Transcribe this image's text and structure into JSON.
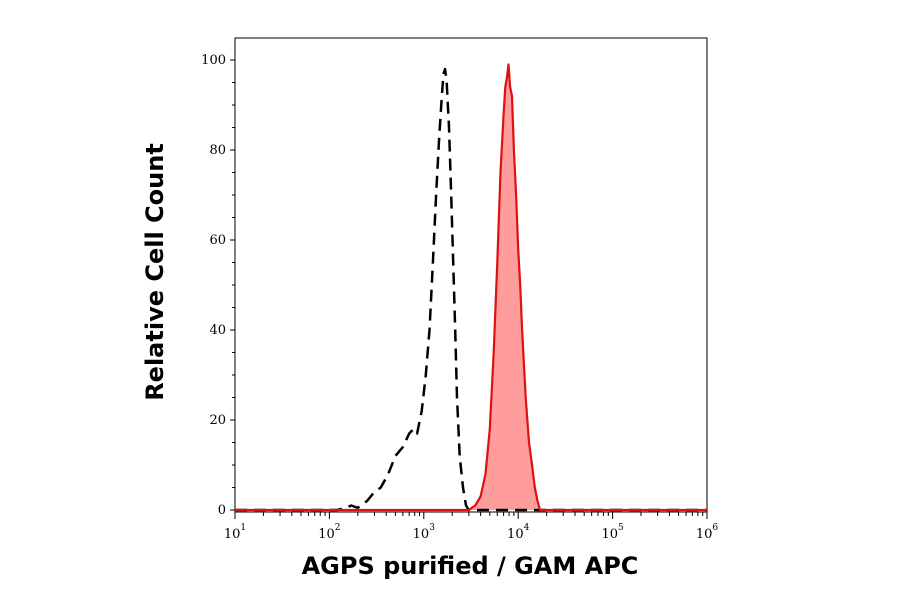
{
  "chart_data": {
    "type": "histogram",
    "xlabel": "AGPS purified / GAM APC",
    "ylabel": "Relative Cell Count",
    "x_scale": "log",
    "xlim": [
      10,
      1000000
    ],
    "ylim": [
      0,
      100
    ],
    "x_ticks": [
      {
        "base": "10",
        "exp": "1"
      },
      {
        "base": "10",
        "exp": "2"
      },
      {
        "base": "10",
        "exp": "3"
      },
      {
        "base": "10",
        "exp": "4"
      },
      {
        "base": "10",
        "exp": "5"
      },
      {
        "base": "10",
        "exp": "6"
      }
    ],
    "y_ticks": [
      "0",
      "20",
      "40",
      "60",
      "80",
      "100"
    ],
    "grid": false,
    "legend": "none",
    "series": [
      {
        "style": "dashed",
        "color": "#000000",
        "fill": "none",
        "points": [
          [
            10,
            0
          ],
          [
            120,
            0
          ],
          [
            150,
            0.5
          ],
          [
            170,
            1
          ],
          [
            200,
            0.5
          ],
          [
            250,
            2
          ],
          [
            300,
            4
          ],
          [
            350,
            5
          ],
          [
            420,
            8
          ],
          [
            500,
            12
          ],
          [
            600,
            14
          ],
          [
            700,
            17
          ],
          [
            780,
            18
          ],
          [
            850,
            17
          ],
          [
            950,
            22
          ],
          [
            1050,
            30
          ],
          [
            1150,
            40
          ],
          [
            1250,
            55
          ],
          [
            1350,
            70
          ],
          [
            1450,
            82
          ],
          [
            1550,
            92
          ],
          [
            1620,
            97
          ],
          [
            1680,
            98
          ],
          [
            1750,
            95
          ],
          [
            1850,
            85
          ],
          [
            1950,
            70
          ],
          [
            2050,
            55
          ],
          [
            2150,
            40
          ],
          [
            2250,
            25
          ],
          [
            2400,
            12
          ],
          [
            2600,
            5
          ],
          [
            2800,
            1
          ],
          [
            3000,
            0
          ],
          [
            3500,
            0
          ],
          [
            5000,
            0
          ],
          [
            8000,
            0
          ],
          [
            10000,
            0
          ],
          [
            20000,
            0
          ],
          [
            1000000,
            0
          ]
        ]
      },
      {
        "style": "solid",
        "color": "#dd1111",
        "fill": "#ff9c9c",
        "points": [
          [
            10,
            0
          ],
          [
            3000,
            0
          ],
          [
            3500,
            1
          ],
          [
            4000,
            3
          ],
          [
            4500,
            8
          ],
          [
            5000,
            18
          ],
          [
            5500,
            35
          ],
          [
            6000,
            55
          ],
          [
            6500,
            75
          ],
          [
            7000,
            88
          ],
          [
            7300,
            94
          ],
          [
            7600,
            96
          ],
          [
            7900,
            99
          ],
          [
            8200,
            94
          ],
          [
            8600,
            92
          ],
          [
            9000,
            80
          ],
          [
            9500,
            70
          ],
          [
            10000,
            58
          ],
          [
            10500,
            50
          ],
          [
            11000,
            40
          ],
          [
            12000,
            25
          ],
          [
            13000,
            15
          ],
          [
            14000,
            10
          ],
          [
            15000,
            5
          ],
          [
            16000,
            2
          ],
          [
            17000,
            0
          ],
          [
            1000000,
            0
          ]
        ]
      }
    ]
  }
}
